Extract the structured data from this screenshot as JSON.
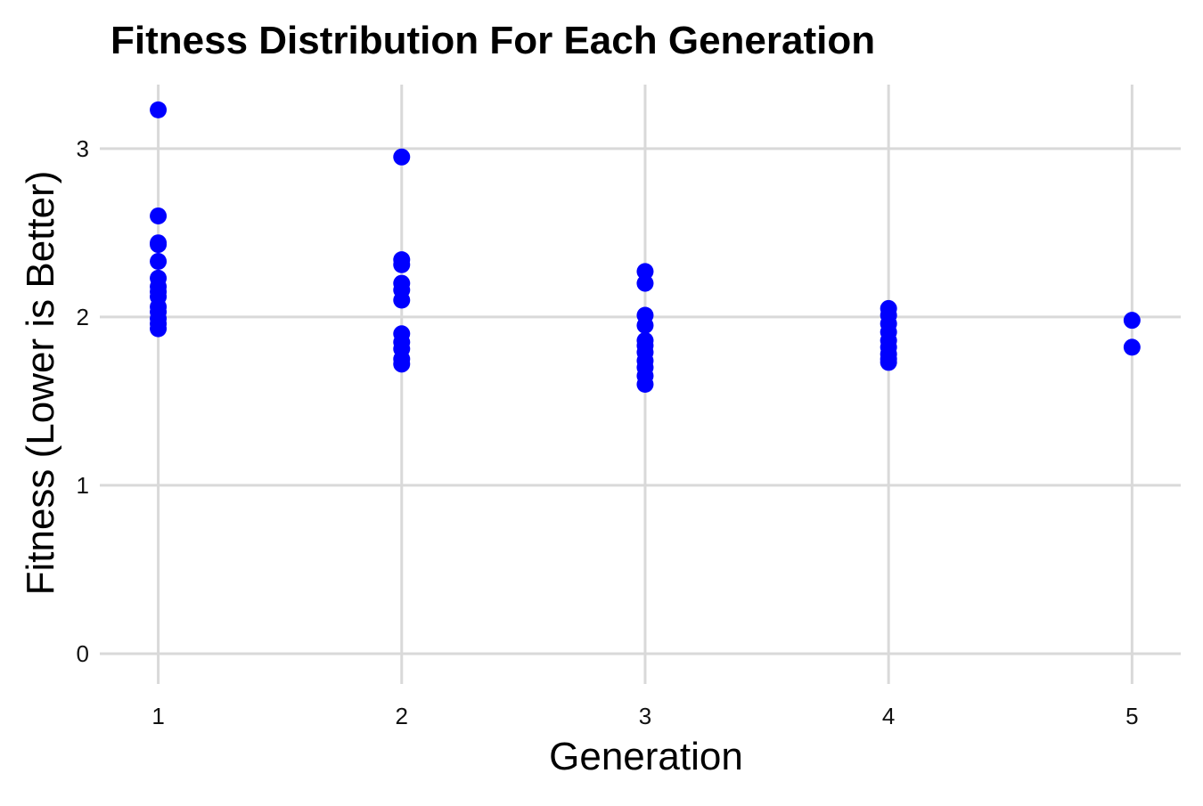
{
  "chart_data": {
    "type": "scatter",
    "title": "Fitness Distribution For Each Generation",
    "xlabel": "Generation",
    "ylabel": "Fitness (Lower is Better)",
    "xlim": [
      0.76,
      5.2
    ],
    "ylim": [
      -0.18,
      3.38
    ],
    "x_ticks": [
      1,
      2,
      3,
      4,
      5
    ],
    "y_ticks": [
      0,
      1,
      2,
      3
    ],
    "grid": true,
    "legend": "none",
    "point_color": "#0000ff",
    "series": [
      {
        "points": [
          {
            "x": 1,
            "y": 3.23
          },
          {
            "x": 1,
            "y": 2.6
          },
          {
            "x": 1,
            "y": 2.44
          },
          {
            "x": 1,
            "y": 2.43
          },
          {
            "x": 1,
            "y": 2.33
          },
          {
            "x": 1,
            "y": 2.23
          },
          {
            "x": 1,
            "y": 2.18
          },
          {
            "x": 1,
            "y": 2.15
          },
          {
            "x": 1,
            "y": 2.12
          },
          {
            "x": 1,
            "y": 2.06
          },
          {
            "x": 1,
            "y": 2.03
          },
          {
            "x": 1,
            "y": 1.99
          },
          {
            "x": 1,
            "y": 1.96
          },
          {
            "x": 1,
            "y": 1.93
          },
          {
            "x": 2,
            "y": 2.95
          },
          {
            "x": 2,
            "y": 2.34
          },
          {
            "x": 2,
            "y": 2.31
          },
          {
            "x": 2,
            "y": 2.2
          },
          {
            "x": 2,
            "y": 2.16
          },
          {
            "x": 2,
            "y": 2.1
          },
          {
            "x": 2,
            "y": 1.9
          },
          {
            "x": 2,
            "y": 1.85
          },
          {
            "x": 2,
            "y": 1.81
          },
          {
            "x": 2,
            "y": 1.75
          },
          {
            "x": 2,
            "y": 1.72
          },
          {
            "x": 3,
            "y": 2.27
          },
          {
            "x": 3,
            "y": 2.2
          },
          {
            "x": 3,
            "y": 2.01
          },
          {
            "x": 3,
            "y": 1.95
          },
          {
            "x": 3,
            "y": 1.86
          },
          {
            "x": 3,
            "y": 1.83
          },
          {
            "x": 3,
            "y": 1.79
          },
          {
            "x": 3,
            "y": 1.74
          },
          {
            "x": 3,
            "y": 1.7
          },
          {
            "x": 3,
            "y": 1.65
          },
          {
            "x": 3,
            "y": 1.6
          },
          {
            "x": 4,
            "y": 2.05
          },
          {
            "x": 4,
            "y": 2.01
          },
          {
            "x": 4,
            "y": 1.96
          },
          {
            "x": 4,
            "y": 1.91
          },
          {
            "x": 4,
            "y": 1.86
          },
          {
            "x": 4,
            "y": 1.82
          },
          {
            "x": 4,
            "y": 1.78
          },
          {
            "x": 4,
            "y": 1.75
          },
          {
            "x": 4,
            "y": 1.73
          },
          {
            "x": 5,
            "y": 1.98
          },
          {
            "x": 5,
            "y": 1.82
          }
        ]
      }
    ]
  }
}
